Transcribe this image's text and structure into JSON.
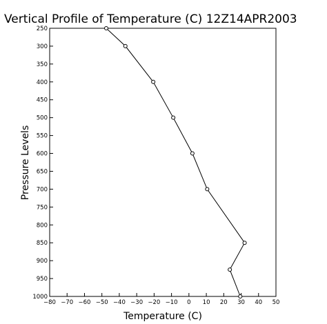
{
  "chart_data": {
    "type": "line",
    "title": "Vertical Profile of Temperature (C) 12Z14APR2003",
    "xlabel": "Temperature (C)",
    "ylabel": "Pressure Levels",
    "xlim": [
      -80,
      50
    ],
    "ylim": [
      1000,
      250
    ],
    "y_reversed": true,
    "grid": false,
    "x_ticks": [
      -80,
      -70,
      -60,
      -50,
      -40,
      -30,
      -20,
      -10,
      0,
      10,
      20,
      30,
      40,
      50
    ],
    "x_tick_labels": [
      "−80",
      "−70",
      "−60",
      "−50",
      "−40",
      "−30",
      "−20",
      "−10",
      "0",
      "10",
      "20",
      "30",
      "40",
      "50"
    ],
    "y_ticks": [
      250,
      300,
      350,
      400,
      450,
      500,
      550,
      600,
      650,
      700,
      750,
      800,
      850,
      900,
      950,
      1000
    ],
    "y_tick_labels": [
      "250",
      "300",
      "350",
      "400",
      "450",
      "500",
      "550",
      "600",
      "650",
      "700",
      "750",
      "800",
      "850",
      "900",
      "950",
      "1000"
    ],
    "series": [
      {
        "x": [
          29.5,
          23.5,
          32,
          10.5,
          2,
          -9,
          -20.5,
          -36.5,
          -47.5
        ],
        "y": [
          1000,
          925,
          850,
          700,
          600,
          500,
          400,
          300,
          250
        ]
      }
    ],
    "marker": "circle",
    "line_color": "#000000",
    "marker_color": "#000000"
  }
}
